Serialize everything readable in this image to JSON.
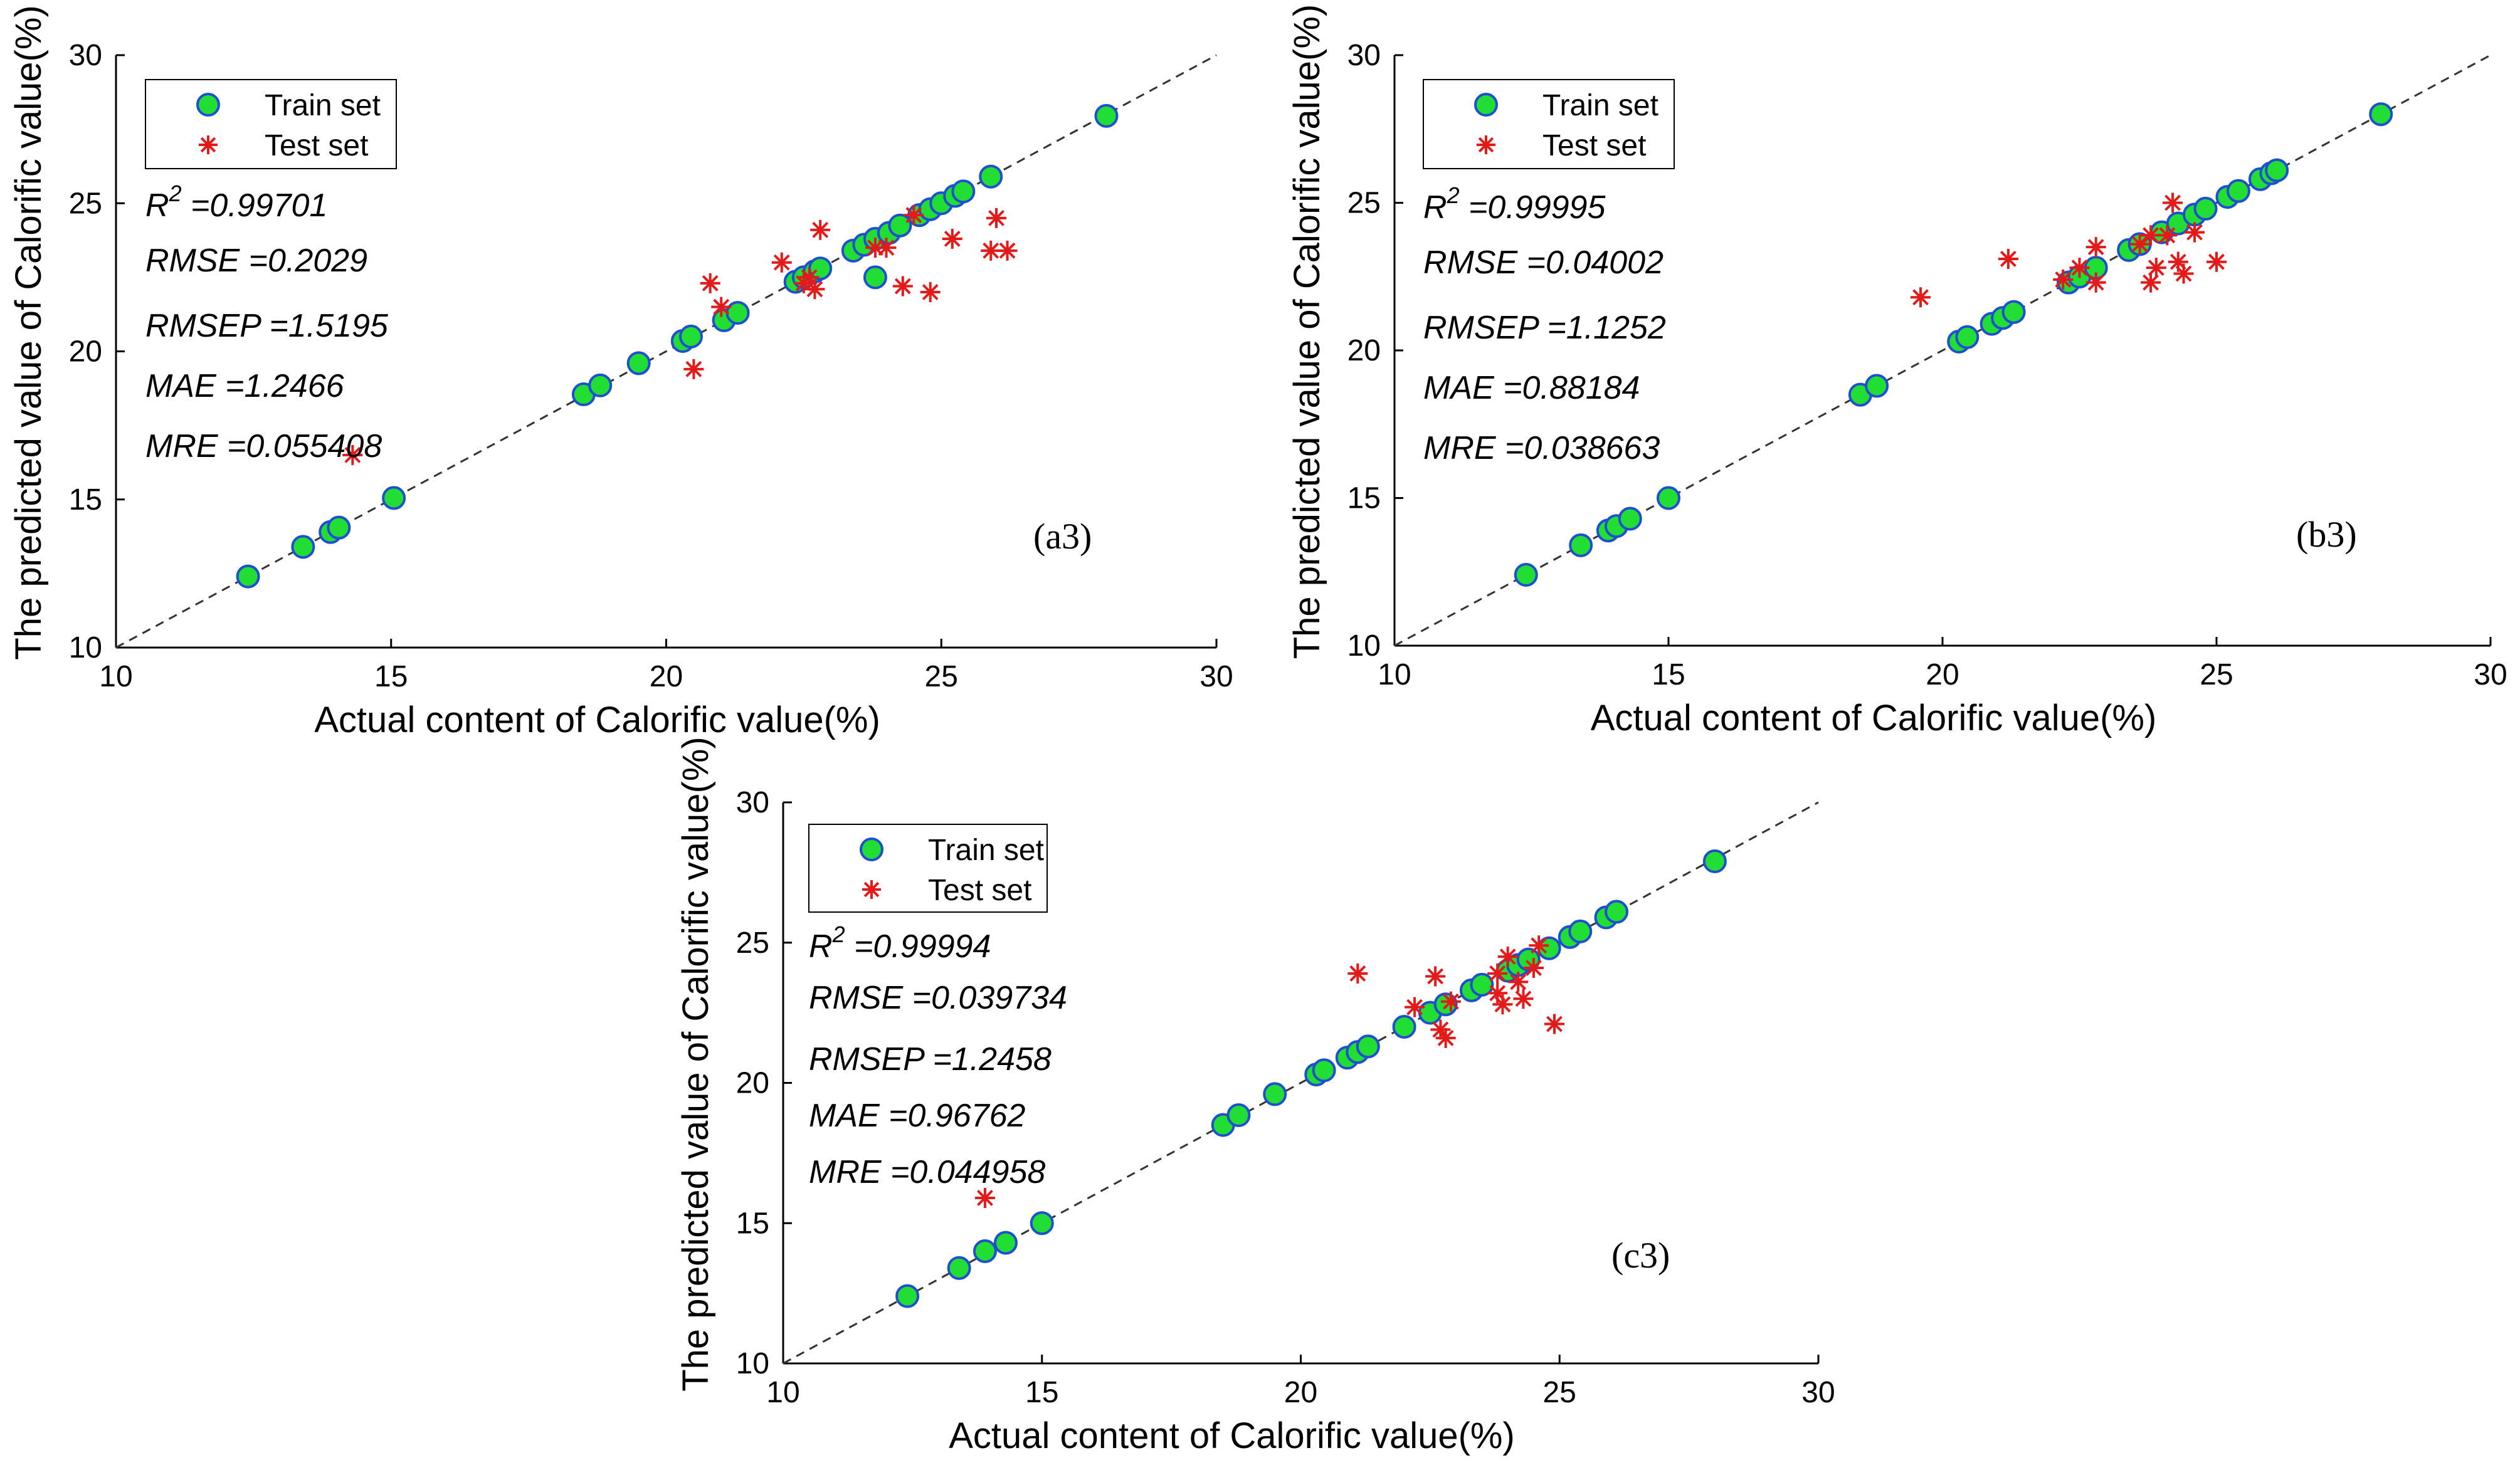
{
  "chart_data": [
    {
      "type": "scatter",
      "panel_label": "(a3)",
      "xlabel": "Actual content of Calorific value(%)",
      "ylabel": "The predicted value of Calorific value(%)",
      "xlim": [
        10,
        30
      ],
      "ylim": [
        10,
        30
      ],
      "xticks": [
        "10",
        "15",
        "20",
        "25",
        "30"
      ],
      "yticks": [
        "10",
        "15",
        "20",
        "25",
        "30"
      ],
      "legend": {
        "position": "top-left",
        "entries": [
          "Train set",
          "Test set"
        ]
      },
      "metrics": {
        "r2_label": "R",
        "r2_sup": "2",
        "r2_value": " =0.99701",
        "rmse": "RMSE =0.2029",
        "rmsep": "RMSEP =1.5195",
        "mae": "MAE =1.2466",
        "mre": "MRE =0.055408"
      },
      "series": [
        {
          "name": "Train set",
          "marker": "circle",
          "color": "#22dd33",
          "edge": "#1f4fd1",
          "points": [
            [
              12.4,
              12.4
            ],
            [
              13.4,
              13.4
            ],
            [
              13.9,
              13.9
            ],
            [
              14.05,
              14.05
            ],
            [
              15.05,
              15.05
            ],
            [
              18.5,
              18.55
            ],
            [
              18.8,
              18.85
            ],
            [
              19.5,
              19.6
            ],
            [
              20.3,
              20.35
            ],
            [
              20.45,
              20.5
            ],
            [
              21.05,
              21.05
            ],
            [
              21.3,
              21.3
            ],
            [
              22.35,
              22.35
            ],
            [
              22.5,
              22.5
            ],
            [
              22.7,
              22.7
            ],
            [
              22.8,
              22.8
            ],
            [
              23.4,
              23.4
            ],
            [
              23.6,
              23.6
            ],
            [
              23.8,
              23.8
            ],
            [
              24.05,
              24.0
            ],
            [
              24.25,
              24.25
            ],
            [
              24.6,
              24.6
            ],
            [
              24.8,
              24.8
            ],
            [
              25.0,
              25.0
            ],
            [
              25.25,
              25.25
            ],
            [
              25.4,
              25.4
            ],
            [
              25.9,
              25.9
            ],
            [
              28.0,
              27.95
            ],
            [
              23.8,
              22.5
            ]
          ]
        },
        {
          "name": "Test set",
          "marker": "asterisk",
          "color": "#e31a1a",
          "points": [
            [
              14.3,
              16.5
            ],
            [
              20.5,
              19.4
            ],
            [
              20.8,
              22.3
            ],
            [
              21.0,
              21.5
            ],
            [
              22.1,
              23.0
            ],
            [
              22.5,
              22.3
            ],
            [
              22.7,
              22.1
            ],
            [
              22.8,
              24.1
            ],
            [
              23.8,
              23.5
            ],
            [
              24.0,
              23.5
            ],
            [
              24.3,
              22.2
            ],
            [
              24.8,
              22.0
            ],
            [
              24.5,
              24.6
            ],
            [
              25.2,
              23.8
            ],
            [
              25.9,
              23.4
            ],
            [
              26.0,
              24.5
            ],
            [
              26.2,
              23.4
            ],
            [
              22.6,
              22.5
            ]
          ]
        }
      ]
    },
    {
      "type": "scatter",
      "panel_label": "(b3)",
      "xlabel": "Actual content of Calorific value(%)",
      "ylabel": "The predicted value of Calorific value(%)",
      "xlim": [
        10,
        30
      ],
      "ylim": [
        10,
        30
      ],
      "xticks": [
        "10",
        "15",
        "20",
        "25",
        "30"
      ],
      "yticks": [
        "10",
        "15",
        "20",
        "25",
        "30"
      ],
      "legend": {
        "position": "top-left",
        "entries": [
          "Train set",
          "Test set"
        ]
      },
      "metrics": {
        "r2_label": "R",
        "r2_sup": "2",
        "r2_value": " =0.99995",
        "rmse": "RMSE =0.04002",
        "rmsep": "RMSEP =1.1252",
        "mae": "MAE =0.88184",
        "mre": "MRE =0.038663"
      },
      "series": [
        {
          "name": "Train set",
          "marker": "circle",
          "color": "#22dd33",
          "edge": "#1f4fd1",
          "points": [
            [
              12.4,
              12.4
            ],
            [
              13.4,
              13.4
            ],
            [
              13.9,
              13.9
            ],
            [
              14.05,
              14.05
            ],
            [
              14.3,
              14.3
            ],
            [
              15.0,
              15.0
            ],
            [
              18.5,
              18.5
            ],
            [
              18.8,
              18.8
            ],
            [
              20.3,
              20.3
            ],
            [
              20.45,
              20.45
            ],
            [
              20.9,
              20.9
            ],
            [
              21.1,
              21.1
            ],
            [
              21.3,
              21.3
            ],
            [
              22.3,
              22.3
            ],
            [
              22.5,
              22.5
            ],
            [
              22.8,
              22.8
            ],
            [
              23.4,
              23.4
            ],
            [
              23.6,
              23.6
            ],
            [
              24.0,
              24.0
            ],
            [
              24.3,
              24.3
            ],
            [
              24.6,
              24.6
            ],
            [
              24.8,
              24.8
            ],
            [
              25.2,
              25.2
            ],
            [
              25.4,
              25.4
            ],
            [
              25.8,
              25.8
            ],
            [
              26.0,
              26.0
            ],
            [
              26.1,
              26.1
            ],
            [
              28.0,
              28.0
            ]
          ]
        },
        {
          "name": "Test set",
          "marker": "asterisk",
          "color": "#e31a1a",
          "points": [
            [
              19.6,
              21.8
            ],
            [
              21.2,
              23.1
            ],
            [
              22.2,
              22.4
            ],
            [
              22.5,
              22.8
            ],
            [
              22.8,
              23.5
            ],
            [
              22.8,
              22.3
            ],
            [
              23.8,
              23.9
            ],
            [
              23.8,
              22.3
            ],
            [
              23.9,
              22.8
            ],
            [
              24.1,
              23.9
            ],
            [
              24.2,
              25.0
            ],
            [
              24.3,
              23.0
            ],
            [
              24.4,
              22.6
            ],
            [
              24.6,
              24.0
            ],
            [
              25.0,
              23.0
            ],
            [
              23.6,
              23.6
            ]
          ]
        }
      ]
    },
    {
      "type": "scatter",
      "panel_label": "(c3)",
      "xlabel": "Actual content of Calorific value(%)",
      "ylabel": "The predicted value of Calorific value(%)",
      "xlim": [
        10,
        30
      ],
      "ylim": [
        10,
        30
      ],
      "xticks": [
        "10",
        "15",
        "20",
        "25",
        "30"
      ],
      "yticks": [
        "10",
        "15",
        "20",
        "25",
        "30"
      ],
      "legend": {
        "position": "top-left",
        "entries": [
          "Train set",
          "Test set"
        ]
      },
      "metrics": {
        "r2_label": "R",
        "r2_sup": "2",
        "r2_value": " =0.99994",
        "rmse": "RMSE =0.039734",
        "rmsep": "RMSEP =1.2458",
        "mae": "MAE =0.96762",
        "mre": "MRE =0.044958"
      },
      "series": [
        {
          "name": "Train set",
          "marker": "circle",
          "color": "#22dd33",
          "edge": "#1f4fd1",
          "points": [
            [
              12.4,
              12.4
            ],
            [
              13.4,
              13.4
            ],
            [
              13.9,
              14.0
            ],
            [
              14.3,
              14.3
            ],
            [
              15.0,
              15.0
            ],
            [
              18.5,
              18.5
            ],
            [
              18.8,
              18.85
            ],
            [
              19.5,
              19.6
            ],
            [
              20.3,
              20.3
            ],
            [
              20.45,
              20.45
            ],
            [
              20.9,
              20.9
            ],
            [
              21.1,
              21.1
            ],
            [
              21.3,
              21.3
            ],
            [
              22.0,
              22.0
            ],
            [
              22.5,
              22.5
            ],
            [
              22.8,
              22.8
            ],
            [
              23.3,
              23.3
            ],
            [
              23.5,
              23.5
            ],
            [
              24.0,
              24.0
            ],
            [
              24.2,
              24.2
            ],
            [
              24.4,
              24.4
            ],
            [
              24.8,
              24.8
            ],
            [
              25.2,
              25.2
            ],
            [
              25.4,
              25.4
            ],
            [
              25.9,
              25.9
            ],
            [
              26.1,
              26.1
            ],
            [
              28.0,
              27.9
            ]
          ]
        },
        {
          "name": "Test set",
          "marker": "asterisk",
          "color": "#e31a1a",
          "points": [
            [
              13.9,
              15.9
            ],
            [
              21.1,
              23.9
            ],
            [
              22.2,
              22.7
            ],
            [
              22.6,
              23.8
            ],
            [
              22.7,
              21.9
            ],
            [
              22.9,
              22.9
            ],
            [
              23.8,
              23.9
            ],
            [
              23.8,
              23.2
            ],
            [
              23.9,
              22.8
            ],
            [
              24.0,
              24.5
            ],
            [
              24.2,
              23.6
            ],
            [
              24.3,
              23.0
            ],
            [
              24.5,
              24.1
            ],
            [
              24.6,
              24.9
            ],
            [
              24.9,
              22.1
            ],
            [
              22.8,
              21.6
            ]
          ]
        }
      ]
    }
  ]
}
